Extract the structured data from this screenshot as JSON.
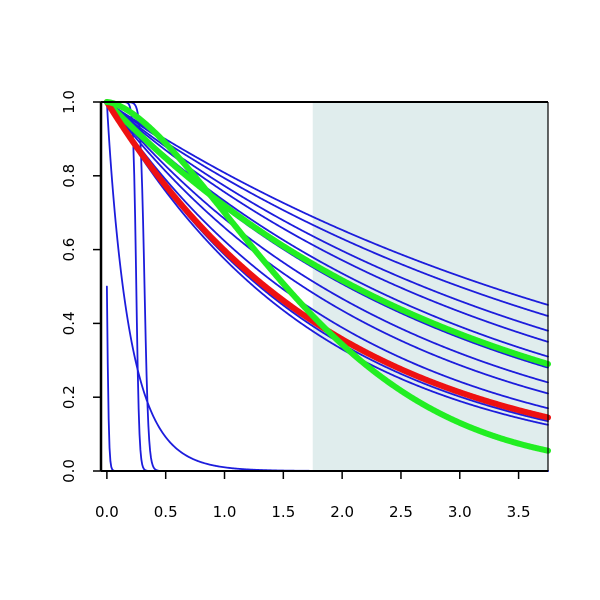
{
  "chart_data": {
    "type": "line",
    "title": "",
    "xlabel": "",
    "ylabel": "",
    "xlim": [
      -0.05,
      3.75
    ],
    "ylim": [
      0.0,
      1.0
    ],
    "x_ticks": [
      0.0,
      0.5,
      1.0,
      1.5,
      2.0,
      2.5,
      3.0,
      3.5
    ],
    "x_tick_labels": [
      "0.0",
      "0.5",
      "1.0",
      "1.5",
      "2.0",
      "2.5",
      "3.0",
      "3.5"
    ],
    "y_ticks": [
      0.0,
      0.2,
      0.4,
      0.6,
      0.8,
      1.0
    ],
    "y_tick_labels": [
      "0.0",
      "0.2",
      "0.4",
      "0.6",
      "0.8",
      "1.0"
    ],
    "grid": false,
    "shaded_region": {
      "x": [
        1.75,
        3.75
      ],
      "color": "#e0eded"
    },
    "colors": {
      "blue": "#1c1cdc",
      "green": "#22ee22",
      "red": "#ee1111",
      "axis": "#000000"
    },
    "series": [
      {
        "color": "blue",
        "kind": "sigmoid",
        "x0": 0.25,
        "k": 80,
        "y_at_xmax": 0.0
      },
      {
        "color": "blue",
        "kind": "sigmoid",
        "x0": 0.0,
        "k": 120,
        "y_at_xmax": 0.0
      },
      {
        "color": "blue",
        "kind": "sigmoid",
        "x0": 0.32,
        "k": 60,
        "y_at_xmax": 0.0
      },
      {
        "color": "blue",
        "kind": "gauss",
        "y_at_0": 1.0,
        "y_at_025": 0.29,
        "y_at_1": 0.01,
        "y_at_xmax": 0.0
      },
      {
        "color": "blue",
        "kind": "exp",
        "y_at_0": 1.0,
        "y_at_xmax": 0.45
      },
      {
        "color": "blue",
        "kind": "exp",
        "y_at_0": 1.0,
        "y_at_xmax": 0.42
      },
      {
        "color": "blue",
        "kind": "exp",
        "y_at_0": 1.0,
        "y_at_xmax": 0.38
      },
      {
        "color": "blue",
        "kind": "exp",
        "y_at_0": 1.0,
        "y_at_xmax": 0.35
      },
      {
        "color": "blue",
        "kind": "exp",
        "y_at_0": 1.0,
        "y_at_xmax": 0.31
      },
      {
        "color": "blue",
        "kind": "exp",
        "y_at_0": 1.0,
        "y_at_xmax": 0.28
      },
      {
        "color": "blue",
        "kind": "exp",
        "y_at_0": 1.0,
        "y_at_xmax": 0.24
      },
      {
        "color": "blue",
        "kind": "exp",
        "y_at_0": 1.0,
        "y_at_xmax": 0.21
      },
      {
        "color": "blue",
        "kind": "exp",
        "y_at_0": 1.0,
        "y_at_xmax": 0.17
      },
      {
        "color": "blue",
        "kind": "exp",
        "y_at_0": 1.0,
        "y_at_xmax": 0.135
      },
      {
        "color": "blue",
        "kind": "exp",
        "y_at_0": 1.0,
        "y_at_xmax": 0.125
      },
      {
        "color": "green",
        "kind": "exp",
        "y_at_0": 1.0,
        "y_at_xmax": 0.29,
        "bold": true
      },
      {
        "color": "red",
        "kind": "exp",
        "y_at_0": 1.0,
        "y_at_xmax": 0.145,
        "bold": true
      },
      {
        "color": "green",
        "kind": "weibull",
        "y_at_0": 1.0,
        "y_at_1": 0.7,
        "y_at_xmax": 0.055,
        "bold": true
      }
    ]
  }
}
